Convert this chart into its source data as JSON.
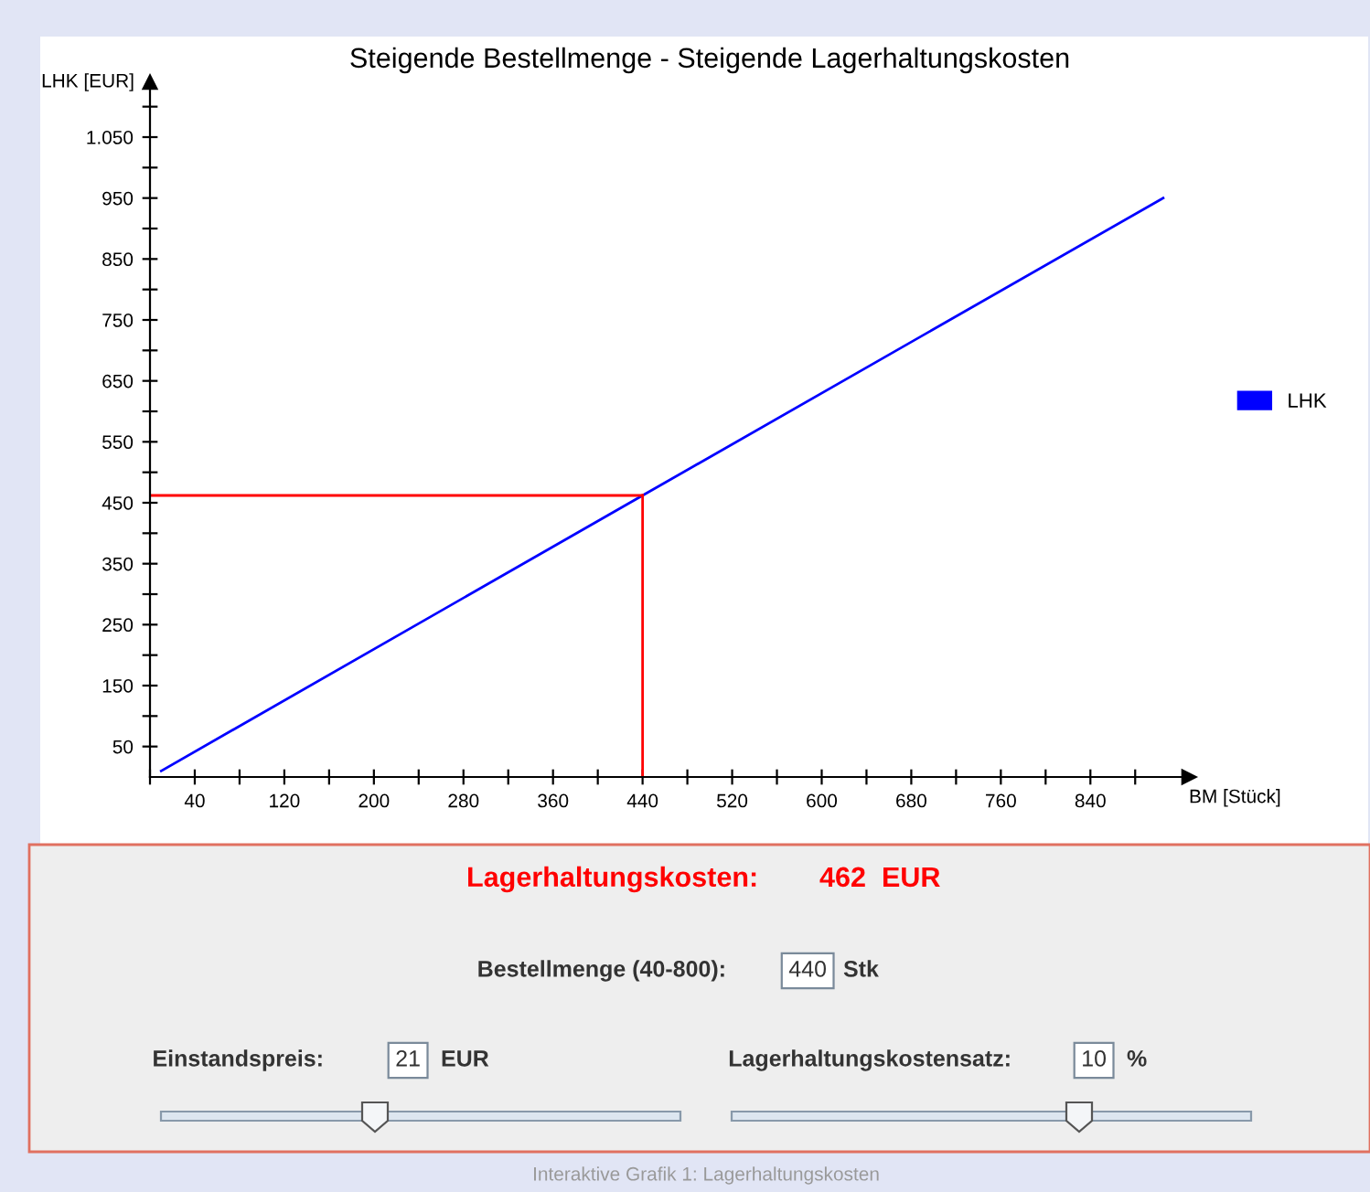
{
  "chart_data": {
    "type": "line",
    "title": "Steigende Bestellmenge - Steigende Lagerhaltungskosten",
    "xlabel": "BM [Stück]",
    "ylabel": "LHK [EUR]",
    "x": [
      10,
      440,
      905
    ],
    "series": [
      {
        "name": "LHK",
        "color": "#0000ff",
        "values": [
          10,
          462,
          950
        ]
      }
    ],
    "xlim": [
      0,
      928
    ],
    "xticks": [
      {
        "value": 0,
        "label": null
      },
      40,
      {
        "value": 80,
        "label": null
      },
      120,
      {
        "value": 160,
        "label": null
      },
      200,
      {
        "value": 240,
        "label": null
      },
      280,
      {
        "value": 320,
        "label": null
      },
      360,
      {
        "value": 400,
        "label": null
      },
      440,
      {
        "value": 480,
        "label": null
      },
      520,
      {
        "value": 560,
        "label": null
      },
      600,
      {
        "value": 640,
        "label": null
      },
      680,
      {
        "value": 720,
        "label": null
      },
      760,
      {
        "value": 800,
        "label": null
      },
      840,
      {
        "value": 880,
        "label": null
      }
    ],
    "ylim": [
      0,
      1140
    ],
    "yticks": [
      50,
      {
        "value": 100,
        "label": null
      },
      150,
      {
        "value": 200,
        "label": null
      },
      250,
      {
        "value": 300,
        "label": null
      },
      350,
      {
        "value": 400,
        "label": null
      },
      450,
      {
        "value": 500,
        "label": null
      },
      550,
      {
        "value": 600,
        "label": null
      },
      650,
      {
        "value": 700,
        "label": null
      },
      750,
      {
        "value": 800,
        "label": null
      },
      850,
      {
        "value": 900,
        "label": null
      },
      950,
      {
        "value": 1000,
        "label": null
      },
      {
        "value": 1050,
        "label": "1.050"
      },
      {
        "value": 1100,
        "label": null
      }
    ],
    "ref_lines": [
      {
        "axis": "y",
        "value": 462,
        "color": "#ff0000"
      },
      {
        "axis": "x",
        "value": 440,
        "color": "#ff0000"
      }
    ],
    "legend": "right",
    "grid": false,
    "marker": "none",
    "line_style": "solid",
    "annotations": [
      "Lagerhaltungskosten:",
      "462  EUR",
      "Bestellmenge (40-800):",
      "440",
      "Stk",
      "Einstandspreis:",
      "21",
      "EUR",
      "Lagerhaltungskostensatz:",
      "10",
      "%",
      "Interaktive Grafik 1: Lagerhaltungskosten"
    ]
  }
}
